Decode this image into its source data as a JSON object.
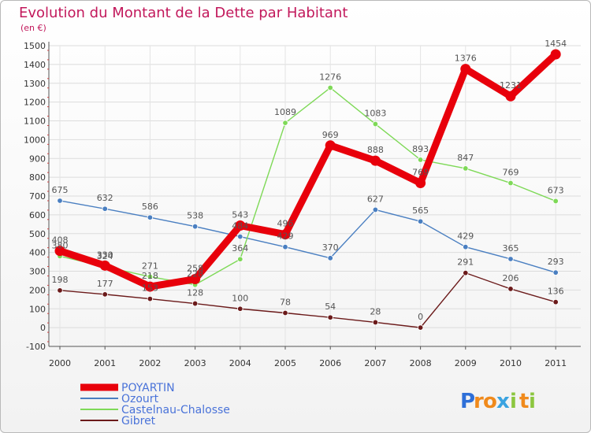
{
  "chart_data": {
    "type": "line",
    "title": "Evolution du Montant de la Dette par Habitant",
    "subtitle": "(en €)",
    "xlabel": "",
    "ylabel": "",
    "ylim": [
      -100,
      1500
    ],
    "yticks": [
      -100,
      0,
      100,
      200,
      300,
      400,
      500,
      600,
      700,
      800,
      900,
      1000,
      1100,
      1200,
      1300,
      1400,
      1500
    ],
    "grid": true,
    "legend_position": "bottom-left",
    "categories": [
      "2000",
      "2001",
      "2002",
      "2003",
      "2004",
      "2005",
      "2006",
      "2007",
      "2008",
      "2009",
      "2010",
      "2011"
    ],
    "series": [
      {
        "name": "POYARTIN",
        "color": "#e8000b",
        "values": [
          408,
          330,
          218,
          258,
          543,
          496,
          969,
          888,
          769,
          1376,
          1231,
          1454
        ]
      },
      {
        "name": "Ozourt",
        "color": "#4a7fc1",
        "values": [
          675,
          632,
          586,
          538,
          484,
          429,
          370,
          627,
          565,
          429,
          365,
          293
        ]
      },
      {
        "name": "Castelnau-Chalosse",
        "color": "#7ed957",
        "values": [
          380,
          324,
          271,
          228,
          364,
          1089,
          1276,
          1083,
          893,
          847,
          769,
          673
        ]
      },
      {
        "name": "Gibret",
        "color": "#6b1a1a",
        "values": [
          198,
          177,
          153,
          128,
          100,
          78,
          54,
          28,
          0,
          291,
          206,
          136
        ]
      }
    ]
  },
  "brand": {
    "letters": [
      "P",
      "r",
      "o",
      "x",
      "i",
      "t",
      "i"
    ],
    "colors": [
      "#2e6fd8",
      "#f08a1c",
      "#f08a1c",
      "#3aa3e0",
      "#8cc63f",
      "#f08a1c",
      "#8cc63f"
    ]
  }
}
